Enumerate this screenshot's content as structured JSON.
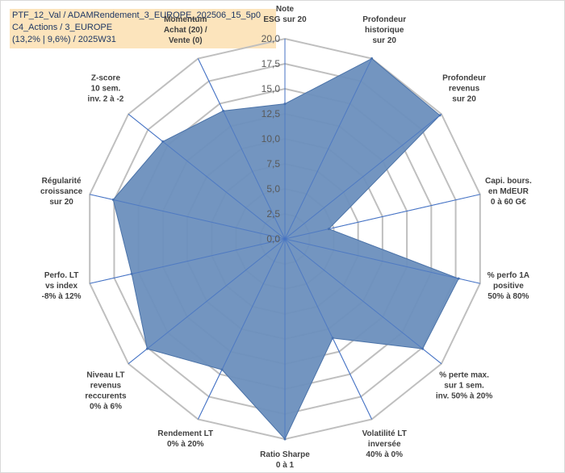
{
  "header": {
    "lines": [
      "PTF_12_Val / ADAMRendement_3_EUROPE_202506_15_5p0",
      "C4_Actions / 3_EUROPE",
      "(13,2% | 9,6%) / 2025W31"
    ],
    "background": "#fce4bc"
  },
  "chart_data": {
    "type": "radar",
    "title": "",
    "rlim": [
      0,
      20
    ],
    "ticks": [
      0,
      2.5,
      5,
      7.5,
      10,
      12.5,
      15,
      17.5,
      20
    ],
    "tick_labels": [
      "0,0",
      "2,5",
      "5,0",
      "7,5",
      "10,0",
      "12,5",
      "15,0",
      "17,5",
      "20,0"
    ],
    "categories": [
      "Note ESG sur 20",
      "Profondeur historique sur 20",
      "Profondeur revenus sur 20",
      "Capi. bours. en MdEUR 0 à 60 G€",
      "% perfo 1A positive 50% à 80%",
      "% perte max. sur 1 sem. inv. 50% à 20%",
      "Volatilité LT inversée 40% à 0%",
      "Ratio Sharpe 0 à 1",
      "Rendement LT 0% à 20%",
      "Niveau LT revenus reccurents 0% à 6%",
      "Perfo. LT vs index -8% à 12%",
      "Régularité croissance sur 20",
      "Z-score 10 sem. inv. 2 à -2",
      "Momentum Achat (20) / Vente (0)"
    ],
    "category_lines": [
      [
        "Note",
        "ESG sur 20"
      ],
      [
        "Profondeur",
        "historique",
        "sur 20"
      ],
      [
        "Profondeur",
        "revenus",
        "sur 20"
      ],
      [
        "Capi. bours.",
        "en MdEUR",
        "0 à 60 G€"
      ],
      [
        "% perfo 1A",
        "positive",
        "50% à 80%"
      ],
      [
        "% perte max.",
        "sur 1 sem.",
        "inv. 50% à 20%"
      ],
      [
        "Volatilité LT",
        "inversée",
        "40% à 0%"
      ],
      [
        "Ratio Sharpe",
        "0 à 1"
      ],
      [
        "Rendement LT",
        "0% à 20%"
      ],
      [
        "Niveau LT",
        "revenus",
        "reccurents",
        "0% à 6%"
      ],
      [
        "Perfo. LT",
        "vs index",
        "-8% à 12%"
      ],
      [
        "Régularité",
        "croissance",
        "sur 20"
      ],
      [
        "Z-score",
        "10 sem.",
        "inv. 2 à -2"
      ],
      [
        "Momentum",
        "Achat (20) /",
        "Vente (0)"
      ]
    ],
    "series": [
      {
        "values": [
          13.5,
          20,
          19.8,
          4.5,
          17.8,
          17.6,
          11,
          20,
          14.5,
          17.6,
          15.7,
          17.6,
          15.6,
          14.2
        ],
        "fill": "#6b8fbd",
        "stroke": "#4a72a8"
      }
    ],
    "grid": true,
    "grid_color": "#bfbfbf",
    "spoke_color": "#4472c4"
  }
}
